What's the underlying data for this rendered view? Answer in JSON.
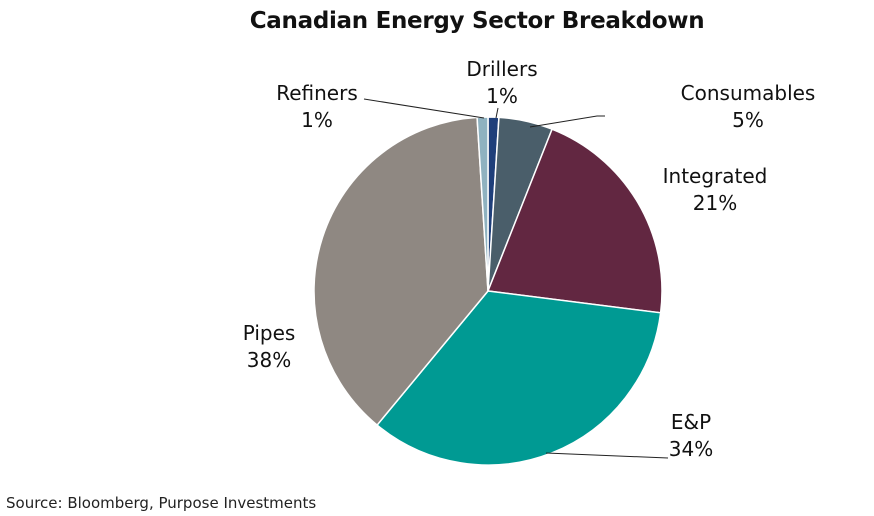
{
  "chart_data": {
    "type": "pie",
    "title": "Canadian Energy Sector Breakdown",
    "slices": [
      {
        "name": "Drillers",
        "value": 1,
        "label": "1%",
        "color": "#1f3f7a"
      },
      {
        "name": "Consumables",
        "value": 5,
        "label": "5%",
        "color": "#4a5e6a"
      },
      {
        "name": "Integrated",
        "value": 21,
        "label": "21%",
        "color": "#622741"
      },
      {
        "name": "E&P",
        "value": 34,
        "label": "34%",
        "color": "#009a93"
      },
      {
        "name": "Pipes",
        "value": 38,
        "label": "38%",
        "color": "#8f8882"
      },
      {
        "name": "Refiners",
        "value": 1,
        "label": "1%",
        "color": "#8fb2c0"
      }
    ],
    "legend": "none",
    "source": "Source: Bloomberg, Purpose Investments"
  }
}
